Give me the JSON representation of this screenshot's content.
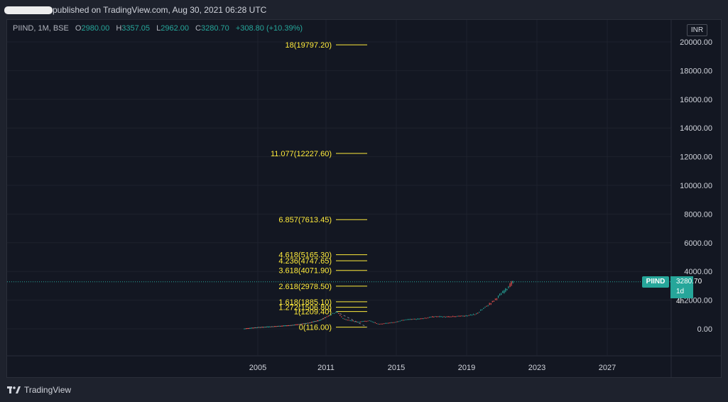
{
  "header": {
    "published_text": "published on TradingView.com, Aug 30, 2021 06:28 UTC"
  },
  "legend": {
    "symbol": "PIIND, 1M, BSE",
    "o_label": "O",
    "o_value": "2980.00",
    "h_label": "H",
    "h_value": "3357.05",
    "l_label": "L",
    "l_value": "2962.00",
    "c_label": "C",
    "c_value": "3280.70",
    "change": "+308.80 (+10.39%)"
  },
  "currency": "INR",
  "price_label": {
    "symbol": "PIIND",
    "last": "3280.70",
    "countdown": "1d 4h"
  },
  "footer": {
    "brand": "TradingView"
  },
  "colors": {
    "background": "#131722",
    "up": "#26a69a",
    "down": "#ef5350",
    "fib": "#ffeb3b",
    "grid": "#1e222d"
  },
  "chart_data": {
    "type": "candlestick",
    "interval": "1M",
    "y_ticks": [
      "20000.00",
      "18000.00",
      "16000.00",
      "14000.00",
      "12000.00",
      "10000.00",
      "8000.00",
      "6000.00",
      "4000.00",
      "2000.00",
      "0.00"
    ],
    "x_ticks": [
      "2005",
      "2011",
      "2015",
      "2019",
      "2023",
      "2027"
    ],
    "ylim": [
      -1900,
      20200
    ],
    "last_price": 3280.7,
    "price_path": [
      [
        2003.8,
        20
      ],
      [
        2005.0,
        110
      ],
      [
        2006.5,
        180
      ],
      [
        2008.0,
        260
      ],
      [
        2009.5,
        420
      ],
      [
        2010.5,
        620
      ],
      [
        2011.0,
        820
      ],
      [
        2011.6,
        1209
      ],
      [
        2012.0,
        700
      ],
      [
        2012.8,
        480
      ],
      [
        2013.5,
        580
      ],
      [
        2014.0,
        330
      ],
      [
        2014.8,
        450
      ],
      [
        2015.5,
        640
      ],
      [
        2016.3,
        700
      ],
      [
        2017.2,
        860
      ],
      [
        2018.0,
        840
      ],
      [
        2018.8,
        900
      ],
      [
        2019.5,
        1000
      ],
      [
        2020.0,
        1450
      ],
      [
        2020.5,
        1900
      ],
      [
        2021.0,
        2450
      ],
      [
        2021.4,
        2950
      ],
      [
        2021.67,
        3280.7
      ]
    ],
    "fib_levels": [
      {
        "label": "18(19797.20)",
        "value": 19797.2
      },
      {
        "label": "11.077(12227.60)",
        "value": 12227.6
      },
      {
        "label": "6.857(7613.45)",
        "value": 7613.45
      },
      {
        "label": "4.618(5165.30)",
        "value": 5165.3
      },
      {
        "label": "4.236(4747.65)",
        "value": 4747.65
      },
      {
        "label": "3.618(4071.90)",
        "value": 4071.9
      },
      {
        "label": "2.618(2978.50)",
        "value": 2978.5
      },
      {
        "label": "1.618(1885.10)",
        "value": 1885.1
      },
      {
        "label": "1.272(1506.80)",
        "value": 1506.8
      },
      {
        "label": "1(1209.40)",
        "value": 1209.4
      },
      {
        "label": "0(116.00)",
        "value": 116.0
      }
    ]
  }
}
